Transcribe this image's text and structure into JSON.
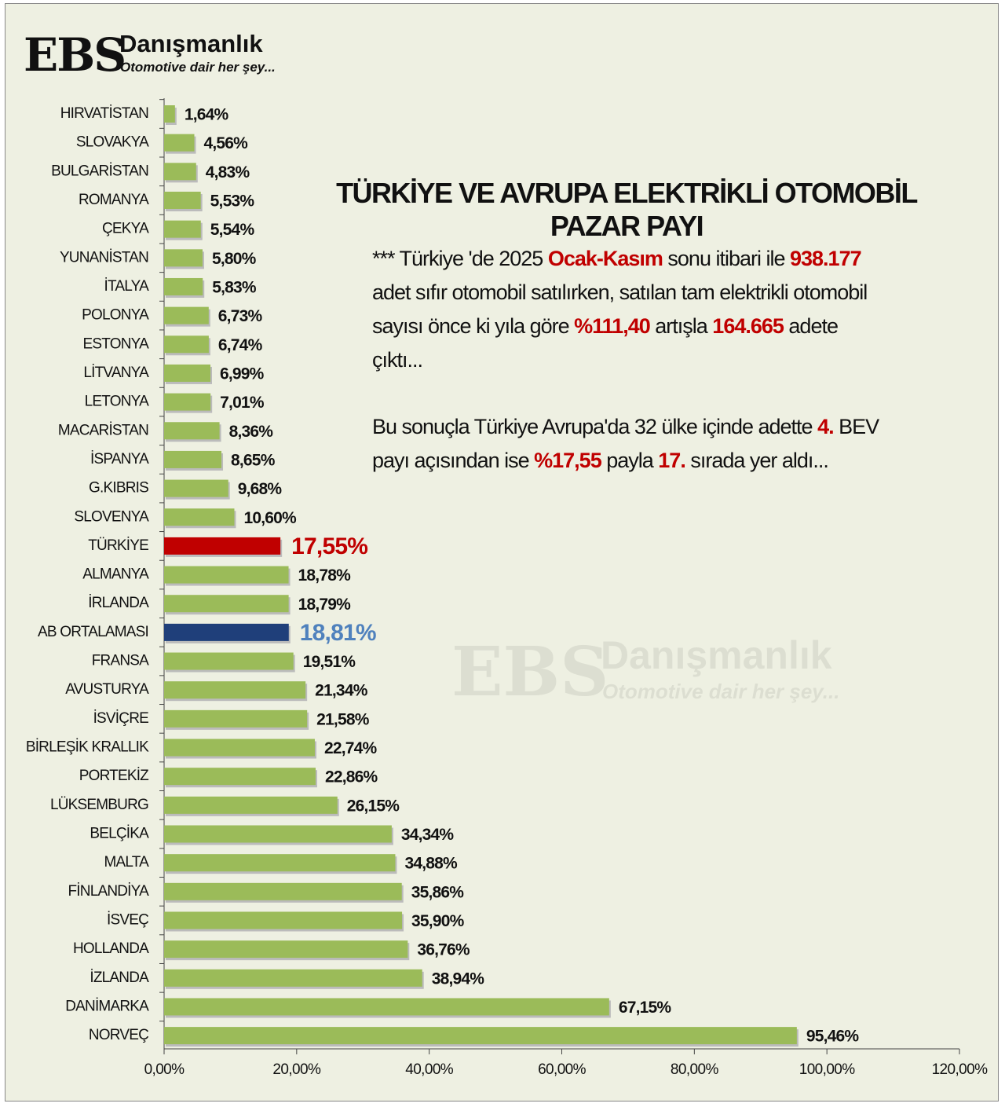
{
  "logo": {
    "brand": "EBS",
    "name": "Danışmanlık",
    "tagline": "Otomotive dair her şey..."
  },
  "chart_data": {
    "type": "bar",
    "orientation": "horizontal",
    "title": "TÜRKİYE VE AVRUPA ELEKTRİKLİ OTOMOBİL PAZAR PAYI",
    "annotations": [
      [
        "*** Türkiye 'de 2025 ",
        {
          "text": "Ocak-Kasım",
          "color": "#c00000"
        },
        " sonu itibari ile ",
        {
          "text": "938.177",
          "color": "#c00000"
        },
        " adet sıfır otomobil satılırken, satılan tam elektrikli otomobil sayısı önce ki yıla göre ",
        {
          "text": "%111,40",
          "color": "#c00000"
        },
        " artışla ",
        {
          "text": "164.665",
          "color": "#c00000"
        },
        " adete çıktı..."
      ],
      [
        "Bu sonuçla Türkiye Avrupa'da 32 ülke içinde adette ",
        {
          "text": "4.",
          "color": "#c00000"
        },
        " BEV payı açısından ise ",
        {
          "text": "%17,55",
          "color": "#c00000"
        },
        " payla ",
        {
          "text": "17.",
          "color": "#c00000"
        },
        " sırada yer aldı..."
      ]
    ],
    "categories": [
      "HIRVATİSTAN",
      "SLOVAKYA",
      "BULGARİSTAN",
      "ROMANYA",
      "ÇEKYA",
      "YUNANİSTAN",
      "İTALYA",
      "POLONYA",
      "ESTONYA",
      "LİTVANYA",
      "LETONYA",
      "MACARİSTAN",
      "İSPANYA",
      "G.KIBRIS",
      "SLOVENYA",
      "TÜRKİYE",
      "ALMANYA",
      "İRLANDA",
      "AB ORTALAMASI",
      "FRANSA",
      "AVUSTURYA",
      "İSVİÇRE",
      "BİRLEŞİK KRALLIK",
      "PORTEKİZ",
      "LÜKSEMBURG",
      "BELÇİKA",
      "MALTA",
      "FİNLANDİYA",
      "İSVEÇ",
      "HOLLANDA",
      "İZLANDA",
      "DANİMARKA",
      "NORVEÇ"
    ],
    "values": [
      1.64,
      4.56,
      4.83,
      5.53,
      5.54,
      5.8,
      5.83,
      6.73,
      6.74,
      6.99,
      7.01,
      8.36,
      8.65,
      9.68,
      10.6,
      17.55,
      18.78,
      18.79,
      18.81,
      19.51,
      21.34,
      21.58,
      22.74,
      22.86,
      26.15,
      34.34,
      34.88,
      35.86,
      35.9,
      36.76,
      38.94,
      67.15,
      95.46
    ],
    "value_labels": [
      "1,64%",
      "4,56%",
      "4,83%",
      "5,53%",
      "5,54%",
      "5,80%",
      "5,83%",
      "6,73%",
      "6,74%",
      "6,99%",
      "7,01%",
      "8,36%",
      "8,65%",
      "9,68%",
      "10,60%",
      "17,55%",
      "18,78%",
      "18,79%",
      "18,81%",
      "19,51%",
      "21,34%",
      "21,58%",
      "22,74%",
      "22,86%",
      "26,15%",
      "34,34%",
      "34,88%",
      "35,86%",
      "35,90%",
      "36,76%",
      "38,94%",
      "67,15%",
      "95,46%"
    ],
    "color": "#9bbb59",
    "colors": [
      "#9bbb59",
      "#9bbb59",
      "#9bbb59",
      "#9bbb59",
      "#9bbb59",
      "#9bbb59",
      "#9bbb59",
      "#9bbb59",
      "#9bbb59",
      "#9bbb59",
      "#9bbb59",
      "#9bbb59",
      "#9bbb59",
      "#9bbb59",
      "#9bbb59",
      "#c00000",
      "#9bbb59",
      "#9bbb59",
      "#1f3f7a",
      "#9bbb59",
      "#9bbb59",
      "#9bbb59",
      "#9bbb59",
      "#9bbb59",
      "#9bbb59",
      "#9bbb59",
      "#9bbb59",
      "#9bbb59",
      "#9bbb59",
      "#9bbb59",
      "#9bbb59",
      "#9bbb59",
      "#9bbb59"
    ],
    "value_label_colors": [
      "#111111",
      "#111111",
      "#111111",
      "#111111",
      "#111111",
      "#111111",
      "#111111",
      "#111111",
      "#111111",
      "#111111",
      "#111111",
      "#111111",
      "#111111",
      "#111111",
      "#111111",
      "#c00000",
      "#111111",
      "#111111",
      "#4f81bd",
      "#111111",
      "#111111",
      "#111111",
      "#111111",
      "#111111",
      "#111111",
      "#111111",
      "#111111",
      "#111111",
      "#111111",
      "#111111",
      "#111111",
      "#111111",
      "#111111"
    ],
    "xlim": [
      0,
      120
    ],
    "xticks": [
      {
        "value": 0,
        "label": "0,00%"
      },
      {
        "value": 20,
        "label": "20,00%"
      },
      {
        "value": 40,
        "label": "40,00%"
      },
      {
        "value": 60,
        "label": "60,00%"
      },
      {
        "value": 80,
        "label": "80,00%"
      },
      {
        "value": 100,
        "label": "100,00%"
      },
      {
        "value": 120,
        "label": "120,00%"
      }
    ]
  }
}
